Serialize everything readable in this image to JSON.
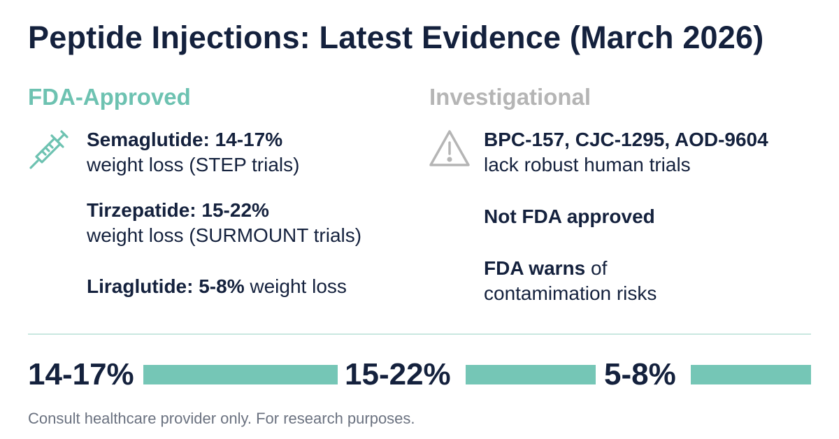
{
  "title": "Peptide Injections: Latest Evidence (March 2026)",
  "approved": {
    "heading": "FDA-Approved",
    "icon": "syringe-icon",
    "color": "#6dc2b1",
    "items": [
      {
        "name": "Semaglutide: 14-17%",
        "detail": "weight loss (STEP trials)"
      },
      {
        "name": "Tirzepatide: 15-22%",
        "detail": "weight loss (SURMOUNT trials)"
      },
      {
        "name": "Liraglutide: 5-8%",
        "detail": "weight loss"
      }
    ]
  },
  "investigational": {
    "heading": "Investigational",
    "icon": "warning-icon",
    "color": "#b5b5b5",
    "items": [
      {
        "name": "BPC-157, CJC-1295, AOD-9604",
        "detail": "lack robust human trials"
      },
      {
        "name": "Not FDA approved",
        "detail": ""
      },
      {
        "name": "FDA warns",
        "detail": "of",
        "detail2": "contamimation risks"
      }
    ]
  },
  "stats": [
    {
      "label": "14-17%"
    },
    {
      "label": "15-22%"
    },
    {
      "label": "5-8%"
    }
  ],
  "bar_color": "#75c6b6",
  "footer": "Consult healthcare provider only. For research purposes."
}
